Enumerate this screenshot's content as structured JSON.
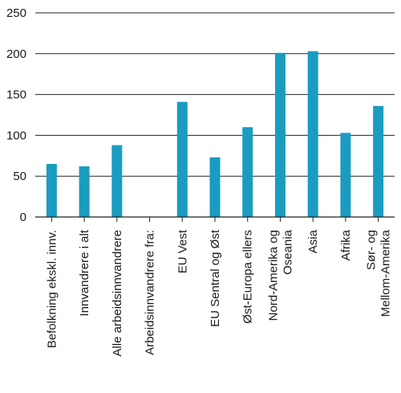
{
  "chart_data": {
    "type": "bar",
    "categories": [
      [
        "Befolkning ekskl. innv."
      ],
      [
        "Innvandrere i alt"
      ],
      [
        "Alle arbeidsinnvandrere"
      ],
      [
        "Arbeidsinnvandrere fra:"
      ],
      [
        "EU Vest"
      ],
      [
        "EU Sentral og Øst"
      ],
      [
        "Øst-Europa ellers"
      ],
      [
        "Nord-Amerika og",
        "Oseania"
      ],
      [
        "Asia"
      ],
      [
        "Afrika"
      ],
      [
        "Sør- og",
        "Mellom-Amerika"
      ]
    ],
    "values": [
      65,
      62,
      88,
      null,
      141,
      73,
      110,
      201,
      203,
      103,
      136
    ],
    "yticks": [
      0,
      50,
      100,
      150,
      200,
      250
    ],
    "ylim": [
      0,
      250
    ],
    "grid": true,
    "bar_color": "#1a9cc0"
  }
}
